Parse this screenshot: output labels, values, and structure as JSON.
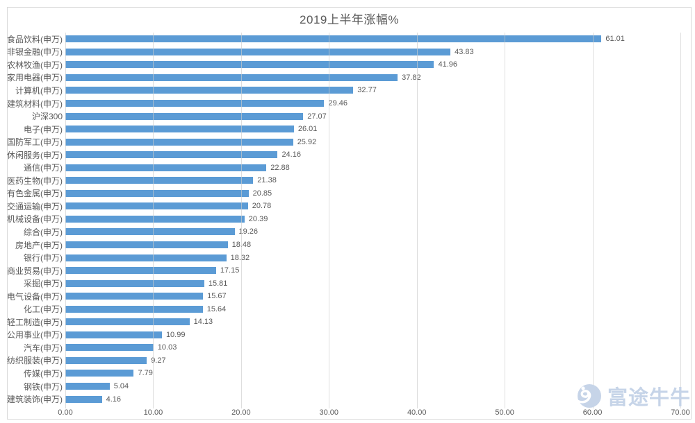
{
  "chart_data": {
    "type": "bar",
    "orientation": "horizontal",
    "title": "2019上半年涨幅%",
    "categories": [
      "食品饮料(申万)",
      "非银金融(申万)",
      "农林牧渔(申万)",
      "家用电器(申万)",
      "计算机(申万)",
      "建筑材料(申万)",
      "沪深300",
      "电子(申万)",
      "国防军工(申万)",
      "休闲服务(申万)",
      "通信(申万)",
      "医药生物(申万)",
      "有色金属(申万)",
      "交通运输(申万)",
      "机械设备(申万)",
      "综合(申万)",
      "房地产(申万)",
      "银行(申万)",
      "商业贸易(申万)",
      "采掘(申万)",
      "电气设备(申万)",
      "化工(申万)",
      "轻工制造(申万)",
      "公用事业(申万)",
      "汽车(申万)",
      "纺织服装(申万)",
      "传媒(申万)",
      "钢铁(申万)",
      "建筑装饰(申万)"
    ],
    "values": [
      61.01,
      43.83,
      41.96,
      37.82,
      32.77,
      29.46,
      27.07,
      26.01,
      25.92,
      24.16,
      22.88,
      21.38,
      20.85,
      20.78,
      20.39,
      19.26,
      18.48,
      18.32,
      17.15,
      15.81,
      15.67,
      15.64,
      14.13,
      10.99,
      10.03,
      9.27,
      7.79,
      5.04,
      4.16
    ],
    "value_labels_shown": true,
    "xlabel": "",
    "ylabel": "",
    "xlim": [
      0,
      70
    ],
    "x_ticks": [
      "0.00",
      "10.00",
      "20.00",
      "30.00",
      "40.00",
      "50.00",
      "60.00",
      "70.00"
    ],
    "grid": "vertical-on",
    "legend": "none",
    "bar_color": "#5b9bd5",
    "gridline_color": "#d9d9d9",
    "text_color": "#595959"
  },
  "watermark": {
    "text": "富途牛牛",
    "icon": "futu-bull-logo",
    "color": "#c6d4e8"
  }
}
